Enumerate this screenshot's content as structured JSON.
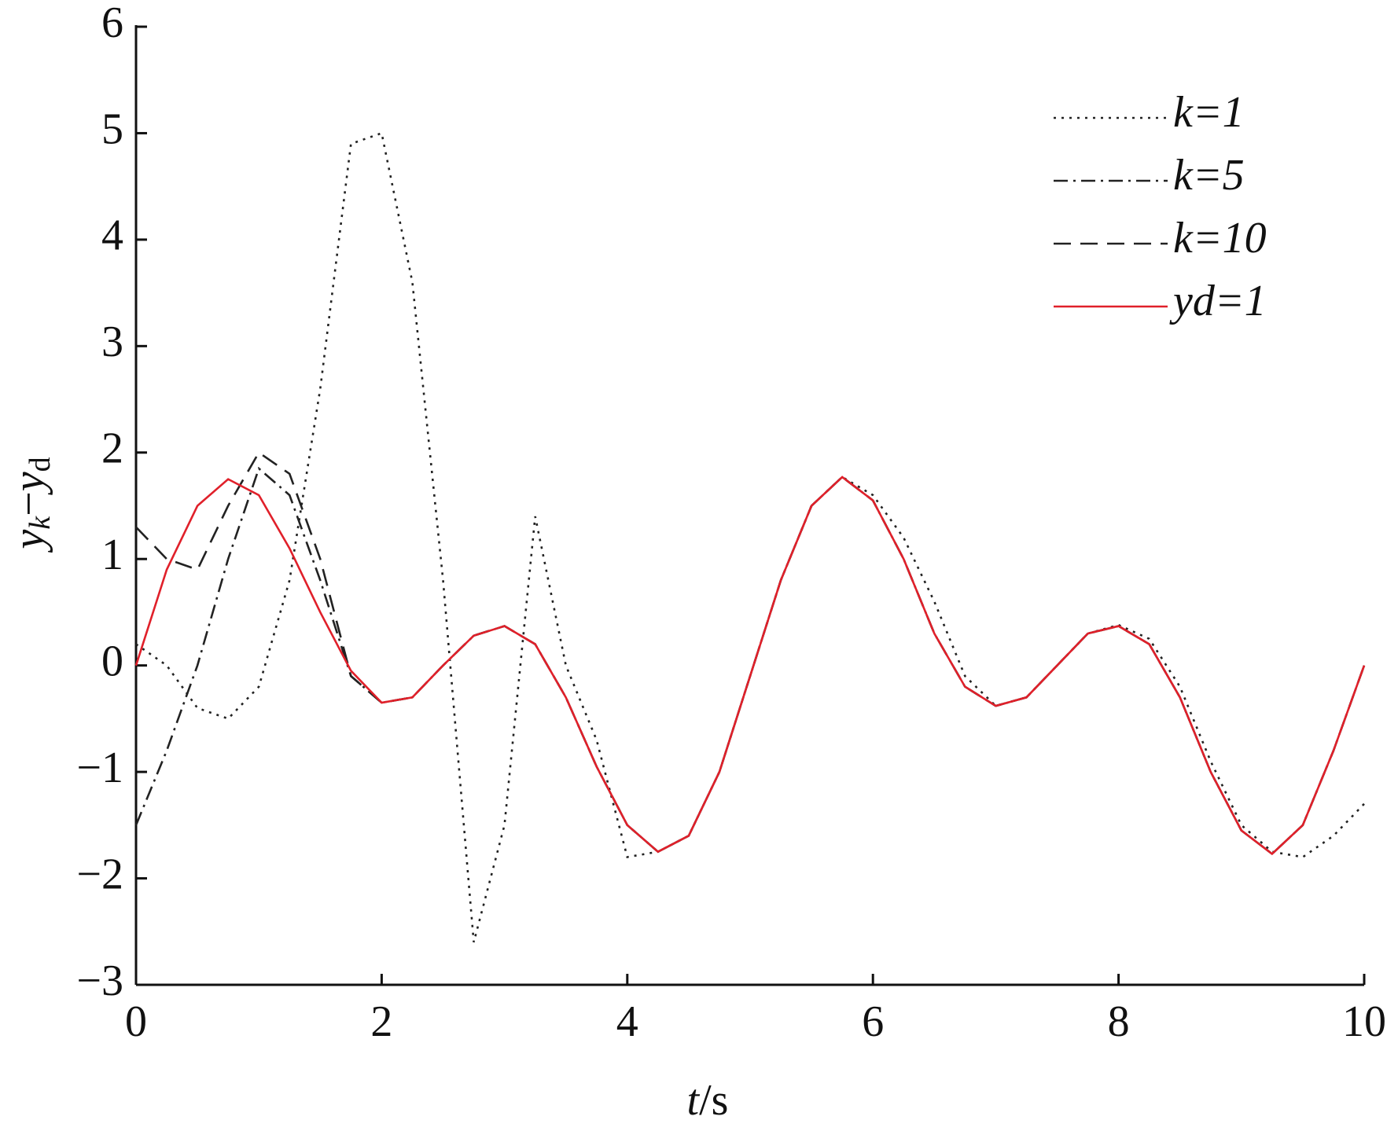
{
  "chart_data": {
    "type": "line",
    "xlabel": [
      "t",
      "/s"
    ],
    "ylabel": [
      "y",
      "k",
      "−",
      "y",
      "d"
    ],
    "x": [
      0,
      0.25,
      0.5,
      0.75,
      1,
      1.25,
      1.5,
      1.75,
      2,
      2.25,
      2.5,
      2.75,
      3,
      3.25,
      3.5,
      3.75,
      4,
      4.25,
      4.5,
      4.75,
      5,
      5.25,
      5.5,
      5.75,
      6,
      6.25,
      6.5,
      6.75,
      7,
      7.25,
      7.5,
      7.75,
      8,
      8.25,
      8.5,
      8.75,
      9,
      9.25,
      9.5,
      9.75,
      10
    ],
    "series": [
      {
        "name": "k=1",
        "color": "#222222",
        "dash": "dotted",
        "values": [
          0.2,
          0,
          -0.4,
          -0.5,
          -0.2,
          0.8,
          2.6,
          4.9,
          5.0,
          3.6,
          0.8,
          -2.6,
          -1.5,
          1.4,
          0,
          -0.7,
          -1.8,
          -1.75,
          -1.6,
          -1.0,
          -0.1,
          0.8,
          1.5,
          1.77,
          1.6,
          1.2,
          0.6,
          -0.1,
          -0.38,
          -0.3,
          0,
          0.3,
          0.38,
          0.25,
          -0.2,
          -0.9,
          -1.5,
          -1.75,
          -1.8,
          -1.6,
          -1.3
        ]
      },
      {
        "name": "k=5",
        "color": "#222222",
        "dash": "dashdot",
        "values": [
          -1.5,
          -0.8,
          0,
          1.0,
          1.85,
          1.6,
          0.8,
          -0.1,
          -0.35,
          -0.3,
          0,
          0.28,
          0.37,
          0.2,
          -0.3,
          -0.95,
          -1.5,
          -1.75,
          -1.6,
          -1.0,
          -0.1,
          0.8,
          1.5,
          1.77,
          1.55,
          1.0,
          0.3,
          -0.2,
          -0.38,
          -0.3,
          0,
          0.3,
          0.37,
          0.2,
          -0.3,
          -1.0,
          -1.55,
          -1.77,
          -1.5,
          -0.8,
          0
        ]
      },
      {
        "name": "k=10",
        "color": "#222222",
        "dash": "dashed",
        "values": [
          1.3,
          1.0,
          0.9,
          1.5,
          2.0,
          1.8,
          1.0,
          -0.1,
          -0.35,
          -0.3,
          0,
          0.28,
          0.37,
          0.2,
          -0.3,
          -0.95,
          -1.5,
          -1.75,
          -1.6,
          -1.0,
          -0.1,
          0.8,
          1.5,
          1.77,
          1.55,
          1.0,
          0.3,
          -0.2,
          -0.38,
          -0.3,
          0,
          0.3,
          0.37,
          0.2,
          -0.3,
          -1.0,
          -1.55,
          -1.77,
          -1.5,
          -0.8,
          0
        ]
      },
      {
        "name": "yd=1",
        "color": "#e0202a",
        "dash": "solid",
        "values": [
          0,
          0.9,
          1.5,
          1.75,
          1.6,
          1.1,
          0.5,
          -0.05,
          -0.35,
          -0.3,
          0,
          0.28,
          0.37,
          0.2,
          -0.3,
          -0.95,
          -1.5,
          -1.75,
          -1.6,
          -1.0,
          -0.1,
          0.8,
          1.5,
          1.77,
          1.55,
          1.0,
          0.3,
          -0.2,
          -0.38,
          -0.3,
          0,
          0.3,
          0.37,
          0.2,
          -0.3,
          -1.0,
          -1.55,
          -1.77,
          -1.5,
          -0.8,
          0
        ]
      }
    ],
    "xlim": [
      0,
      10
    ],
    "xticks": [
      0,
      2,
      4,
      6,
      8,
      10
    ],
    "ylim": [
      -3,
      6
    ],
    "yticks": [
      {
        "value": -3,
        "label": "−3"
      },
      {
        "value": -2,
        "label": "−2"
      },
      {
        "value": -1,
        "label": "−1"
      },
      0,
      1,
      2,
      3,
      4,
      5,
      6
    ],
    "grid": false,
    "legend": "upper right"
  }
}
